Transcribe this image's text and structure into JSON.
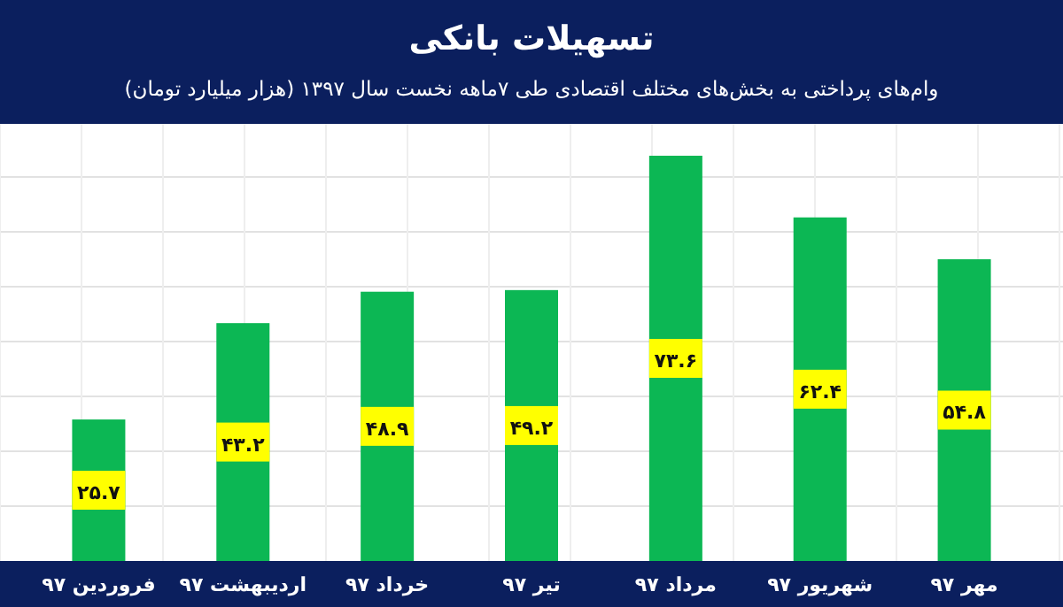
{
  "chart_data": {
    "type": "bar",
    "title": "تسهیلات بانکی",
    "subtitle": "وام‌های پرداختی به بخش‌های مختلف اقتصادی طی ۷ماهه نخست سال ۱۳۹۷ (هزار میلیارد تومان)",
    "categories": [
      "فروردین ۹۷",
      "اردیبهشت ۹۷",
      "خرداد ۹۷",
      "تیر ۹۷",
      "مرداد ۹۷",
      "شهریور ۹۷",
      "مهر ۹۷"
    ],
    "values": [
      25.7,
      43.2,
      48.9,
      49.2,
      73.6,
      62.4,
      54.8
    ],
    "value_labels": [
      "۲۵.۷",
      "۴۳.۲",
      "۴۸.۹",
      "۴۹.۲",
      "۷۳.۶",
      "۶۲.۴",
      "۵۴.۸"
    ],
    "color": "#0cb754",
    "grid": true
  }
}
